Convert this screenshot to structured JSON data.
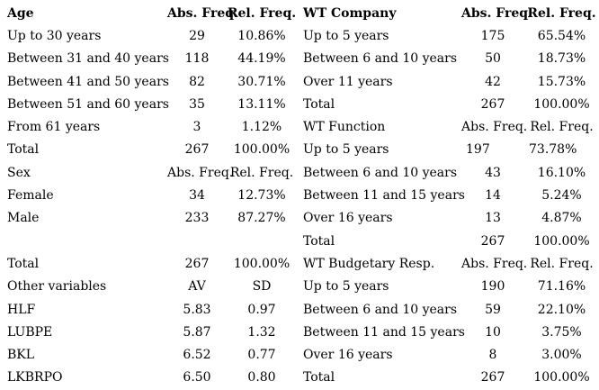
{
  "colors": {
    "background": "#ffffff",
    "text": "#000000"
  },
  "table": {
    "rows": [
      {
        "left": {
          "label": "Age",
          "abs": "Abs. Freq.",
          "rel": "Rel. Freq.",
          "bold": true
        },
        "right": {
          "label": "WT Company",
          "abs": "Abs. Freq.",
          "rel": "Rel. Freq.",
          "bold": true
        }
      },
      {
        "left": {
          "label": "Up to 30 years",
          "abs": "29",
          "rel": "10.86%"
        },
        "right": {
          "label": "Up to 5 years",
          "abs": "175",
          "rel": "65.54%"
        }
      },
      {
        "left": {
          "label": "Between 31 and 40 years",
          "abs": "118",
          "rel": "44.19%"
        },
        "right": {
          "label": "Between 6 and 10 years",
          "abs": "50",
          "rel": "18.73%"
        }
      },
      {
        "left": {
          "label": "Between 41 and 50 years",
          "abs": "82",
          "rel": "30.71%"
        },
        "right": {
          "label": "Over 11 years",
          "abs": "42",
          "rel": "15.73%"
        }
      },
      {
        "left": {
          "label": "Between 51 and 60 years",
          "abs": "35",
          "rel": "13.11%"
        },
        "right": {
          "label": "Total",
          "abs": "267",
          "rel": "100.00%"
        }
      },
      {
        "left": {
          "label": "From 61 years",
          "abs": "3",
          "rel": "1.12%"
        },
        "right": {
          "label": "WT Function",
          "abs": "Abs. Freq.",
          "rel": "Rel. Freq."
        }
      },
      {
        "left": {
          "label": "Total",
          "abs": "267",
          "rel": "100.00%"
        },
        "right": {
          "label": "Up to 5 years",
          "abs": "197",
          "rel": "73.78%",
          "align": "left"
        }
      },
      {
        "left": {
          "label": "Sex",
          "abs": "Abs. Freq.",
          "rel": "Rel. Freq."
        },
        "right": {
          "label": "Between 6 and 10 years",
          "abs": "43",
          "rel": "16.10%"
        }
      },
      {
        "left": {
          "label": "Female",
          "abs": "34",
          "rel": "12.73%"
        },
        "right": {
          "label": "Between 11 and 15 years",
          "abs": "14",
          "rel": "5.24%"
        }
      },
      {
        "left": {
          "label": "Male",
          "abs": "233",
          "rel": "87.27%"
        },
        "right": {
          "label": "Over 16 years",
          "abs": "13",
          "rel": "4.87%"
        }
      },
      {
        "left": {
          "label": "",
          "abs": "",
          "rel": ""
        },
        "right": {
          "label": "Total",
          "abs": "267",
          "rel": "100.00%"
        }
      },
      {
        "left": {
          "label": "Total",
          "abs": "267",
          "rel": "100.00%"
        },
        "right": {
          "label": "WT Budgetary Resp.",
          "abs": "Abs. Freq.",
          "rel": "Rel. Freq."
        }
      },
      {
        "left": {
          "label": "Other variables",
          "abs": "AV",
          "rel": "SD"
        },
        "right": {
          "label": "Up to 5 years",
          "abs": "190",
          "rel": "71.16%"
        }
      },
      {
        "left": {
          "label": "HLF",
          "abs": "5.83",
          "rel": "0.97"
        },
        "right": {
          "label": "Between 6 and 10 years",
          "abs": "59",
          "rel": "22.10%"
        }
      },
      {
        "left": {
          "label": "LUBPE",
          "abs": "5.87",
          "rel": "1.32"
        },
        "right": {
          "label": "Between 11 and 15 years",
          "abs": "10",
          "rel": "3.75%"
        }
      },
      {
        "left": {
          "label": "BKL",
          "abs": "6.52",
          "rel": "0.77"
        },
        "right": {
          "label": "Over 16 years",
          "abs": "8",
          "rel": "3.00%"
        }
      },
      {
        "left": {
          "label": "LKBRPO",
          "abs": "6.50",
          "rel": "0.80"
        },
        "right": {
          "label": "Total",
          "abs": "267",
          "rel": "100.00%"
        }
      }
    ]
  }
}
